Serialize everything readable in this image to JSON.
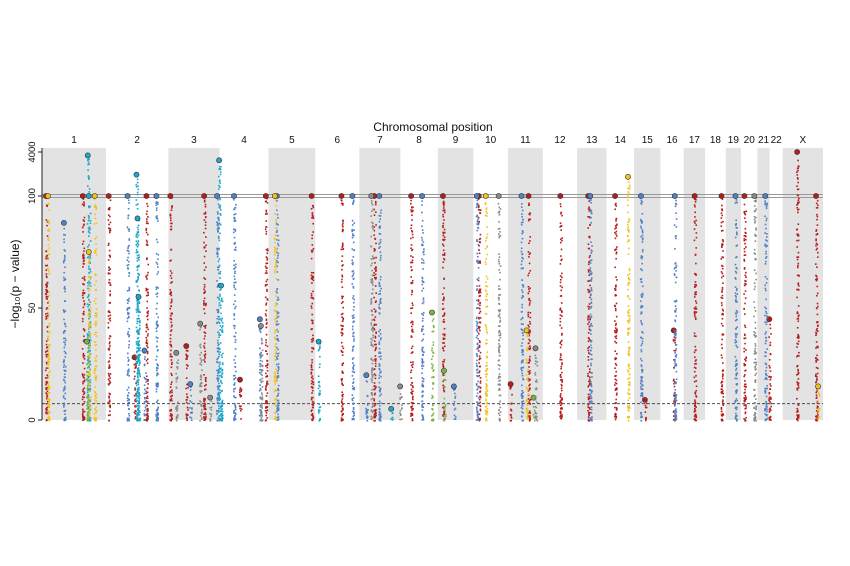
{
  "chart_data": {
    "type": "scatter",
    "title": "Chromosomal position",
    "ylabel": "−log₁₀(p − value)",
    "y_ticks": [
      "0",
      "50",
      "100",
      "4000"
    ],
    "chromosomes": [
      "1",
      "2",
      "3",
      "4",
      "5",
      "6",
      "7",
      "8",
      "9",
      "10",
      "11",
      "12",
      "13",
      "14",
      "15",
      "16",
      "17",
      "18",
      "19",
      "20",
      "21",
      "22",
      "X"
    ],
    "alternate_shading": true,
    "shade_color": "#e3e3e3",
    "significance_line": 7.3,
    "y_scale": "broken: linear 0–100, compressed 100–4000",
    "colors": {
      "red": "#b71c1c",
      "blue": "#4f81c7",
      "cyan": "#1aa7c9",
      "yellow": "#f2c31a",
      "green": "#7cb342",
      "grey": "#8a8a8a"
    },
    "series": [
      {
        "color": "red",
        "lines": [
          [
            4,
            100
          ],
          [
            41,
            100
          ],
          [
            67,
            100
          ],
          [
            93,
            28
          ],
          [
            105,
            100
          ],
          [
            129,
            100
          ],
          [
            145,
            33
          ],
          [
            163,
            100
          ],
          [
            199,
            18
          ],
          [
            225,
            100
          ],
          [
            271,
            100
          ],
          [
            301,
            100
          ],
          [
            334,
            100
          ],
          [
            371,
            100
          ],
          [
            403,
            100
          ],
          [
            439,
            100
          ],
          [
            471,
            16
          ],
          [
            489,
            100
          ],
          [
            521,
            100
          ],
          [
            549,
            100
          ],
          [
            576,
            100
          ],
          [
            606,
            9
          ],
          [
            635,
            40
          ],
          [
            656,
            100
          ],
          [
            683,
            100
          ],
          [
            706,
            100
          ],
          [
            731,
            45
          ],
          [
            759,
            4000
          ],
          [
            778,
            100
          ]
        ]
      },
      {
        "color": "blue",
        "lines": [
          [
            22,
            88
          ],
          [
            86,
            100
          ],
          [
            103,
            31
          ],
          [
            115,
            100
          ],
          [
            149,
            16
          ],
          [
            176,
            100
          ],
          [
            193,
            100
          ],
          [
            219,
            45
          ],
          [
            236,
            100
          ],
          [
            312,
            100
          ],
          [
            326,
            20
          ],
          [
            339,
            100
          ],
          [
            382,
            100
          ],
          [
            414,
            15
          ],
          [
            437,
            100
          ],
          [
            482,
            100
          ],
          [
            551,
            100
          ],
          [
            602,
            100
          ],
          [
            636,
            100
          ],
          [
            697,
            100
          ],
          [
            727,
            100
          ]
        ]
      },
      {
        "color": "cyan",
        "lines": [
          [
            46,
            3000
          ],
          [
            47,
            100
          ],
          [
            95,
            600
          ],
          [
            96,
            90
          ],
          [
            97,
            55
          ],
          [
            178,
            2000
          ],
          [
            180,
            60
          ],
          [
            278,
            35
          ],
          [
            351,
            5
          ]
        ]
      },
      {
        "color": "yellow",
        "lines": [
          [
            6,
            100
          ],
          [
            47,
            75
          ],
          [
            53,
            100
          ],
          [
            234,
            100
          ],
          [
            446,
            100
          ],
          [
            487,
            40
          ],
          [
            589,
            500
          ],
          [
            780,
            15
          ]
        ]
      },
      {
        "color": "green",
        "lines": [
          [
            45,
            35
          ],
          [
            392,
            48
          ],
          [
            404,
            22
          ],
          [
            494,
            10
          ]
        ]
      },
      {
        "color": "grey",
        "lines": [
          [
            135,
            30
          ],
          [
            159,
            43
          ],
          [
            169,
            10
          ],
          [
            220,
            42
          ],
          [
            331,
            100
          ],
          [
            360,
            15
          ],
          [
            459,
            100
          ],
          [
            496,
            32
          ],
          [
            716,
            100
          ]
        ]
      }
    ],
    "chromosome_lengths": [
      248,
      242,
      198,
      190,
      181,
      171,
      159,
      145,
      138,
      134,
      135,
      133,
      114,
      107,
      102,
      90,
      83,
      80,
      59,
      64,
      47,
      51,
      156
    ]
  }
}
